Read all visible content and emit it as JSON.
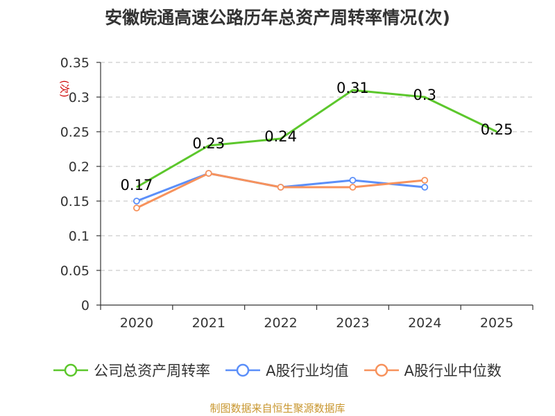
{
  "chart_data": {
    "type": "line",
    "title": "安徽皖通高速公路历年总资产周转率情况(次)",
    "ylabel": "(次)",
    "xlabel": "",
    "categories": [
      "2020",
      "2021",
      "2022",
      "2023",
      "2024",
      "2025"
    ],
    "ylim": [
      0,
      0.35
    ],
    "yticks": [
      0,
      0.05,
      0.1,
      0.15,
      0.2,
      0.25,
      0.3,
      0.35
    ],
    "ytick_labels": [
      "0",
      "0.05",
      "0.1",
      "0.15",
      "0.2",
      "0.25",
      "0.3",
      "0.35"
    ],
    "grid": true,
    "legend_position": "bottom",
    "series": [
      {
        "name": "公司总资产周转率",
        "color": "#5cc72c",
        "values": [
          0.17,
          0.23,
          0.24,
          0.31,
          0.3,
          0.25
        ],
        "data_labels": [
          "0.17",
          "0.23",
          "0.24",
          "0.31",
          "0.3",
          "0.25"
        ],
        "show_markers": false
      },
      {
        "name": "A股行业均值",
        "color": "#5b8ff9",
        "values": [
          0.15,
          0.19,
          0.17,
          0.18,
          0.17,
          null
        ],
        "show_markers": true
      },
      {
        "name": "A股行业中位数",
        "color": "#f7925c",
        "values": [
          0.14,
          0.19,
          0.17,
          0.17,
          0.18,
          null
        ],
        "show_markers": true
      }
    ]
  },
  "source": "制图数据来自恒生聚源数据库"
}
